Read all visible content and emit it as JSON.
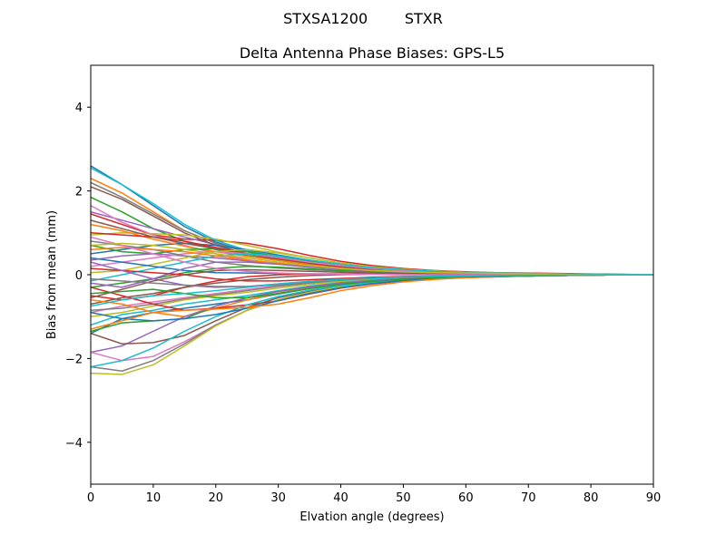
{
  "figure": {
    "suptitle": "STXSA1200        STXR"
  },
  "chart_data": {
    "type": "line",
    "title": "Delta Antenna Phase Biases: GPS-L5",
    "xlabel": "Elvation angle (degrees)",
    "ylabel": "Bias from mean (mm)",
    "xlim": [
      0,
      90
    ],
    "ylim": [
      -5,
      5
    ],
    "xticks": [
      0,
      10,
      20,
      30,
      40,
      50,
      60,
      70,
      80,
      90
    ],
    "xtick_labels": [
      "0",
      "10",
      "20",
      "30",
      "40",
      "50",
      "60",
      "70",
      "80",
      "90"
    ],
    "yticks": [
      -4,
      -2,
      0,
      2,
      4
    ],
    "ytick_labels": [
      "−4",
      "−2",
      "0",
      "2",
      "4"
    ],
    "grid": false,
    "legend": "none",
    "colors": [
      "#1f77b4",
      "#ff7f0e",
      "#2ca02c",
      "#d62728",
      "#9467bd",
      "#8c564b",
      "#e377c2",
      "#7f7f7f",
      "#bcbd22",
      "#17becf"
    ],
    "x": [
      0,
      5,
      10,
      15,
      20,
      25,
      30,
      35,
      40,
      45,
      50,
      55,
      60,
      65,
      70,
      75,
      80,
      85,
      90
    ],
    "series": [
      {
        "values": [
          2.6,
          2.15,
          1.65,
          1.15,
          0.78,
          0.55,
          0.38,
          0.26,
          0.18,
          0.12,
          0.08,
          0.05,
          0.04,
          0.03,
          0.02,
          0.02,
          0.01,
          0.0,
          0.0
        ]
      },
      {
        "values": [
          2.3,
          1.95,
          1.5,
          1.05,
          0.75,
          0.55,
          0.4,
          0.28,
          0.2,
          0.14,
          0.1,
          0.07,
          0.05,
          0.04,
          0.03,
          0.02,
          0.01,
          0.0,
          0.0
        ]
      },
      {
        "values": [
          1.85,
          1.5,
          1.1,
          0.8,
          0.6,
          0.46,
          0.34,
          0.24,
          0.17,
          0.12,
          0.08,
          0.06,
          0.04,
          0.03,
          0.02,
          0.01,
          0.01,
          0.0,
          0.0
        ]
      },
      {
        "values": [
          1.45,
          1.2,
          0.95,
          0.85,
          0.82,
          0.75,
          0.62,
          0.46,
          0.32,
          0.22,
          0.15,
          0.1,
          0.07,
          0.05,
          0.04,
          0.03,
          0.02,
          0.01,
          0.0
        ]
      },
      {
        "values": [
          1.5,
          1.3,
          1.1,
          0.9,
          0.72,
          0.56,
          0.42,
          0.3,
          0.21,
          0.15,
          0.1,
          0.07,
          0.05,
          0.04,
          0.03,
          0.02,
          0.01,
          0.0,
          0.0
        ]
      },
      {
        "values": [
          2.1,
          1.8,
          1.4,
          1.0,
          0.7,
          0.5,
          0.36,
          0.25,
          0.18,
          0.12,
          0.09,
          0.06,
          0.04,
          0.03,
          0.02,
          0.02,
          0.01,
          0.0,
          0.0
        ]
      },
      {
        "values": [
          1.65,
          1.25,
          0.95,
          0.7,
          0.5,
          0.36,
          0.26,
          0.18,
          0.13,
          0.09,
          0.06,
          0.05,
          0.04,
          0.03,
          0.02,
          0.01,
          0.01,
          0.0,
          0.0
        ]
      },
      {
        "values": [
          2.2,
          1.85,
          1.45,
          1.05,
          0.75,
          0.55,
          0.4,
          0.28,
          0.2,
          0.14,
          0.1,
          0.07,
          0.05,
          0.04,
          0.03,
          0.02,
          0.01,
          0.0,
          0.0
        ]
      },
      {
        "values": [
          0.95,
          1.0,
          0.98,
          0.95,
          0.85,
          0.7,
          0.54,
          0.4,
          0.28,
          0.19,
          0.13,
          0.09,
          0.06,
          0.05,
          0.03,
          0.02,
          0.01,
          0.0,
          0.0
        ]
      },
      {
        "values": [
          2.55,
          2.15,
          1.7,
          1.2,
          0.82,
          0.58,
          0.42,
          0.3,
          0.21,
          0.15,
          0.1,
          0.07,
          0.05,
          0.04,
          0.03,
          0.02,
          0.01,
          0.0,
          0.0
        ]
      },
      {
        "values": [
          0.5,
          0.6,
          0.7,
          0.75,
          0.7,
          0.6,
          0.47,
          0.35,
          0.25,
          0.17,
          0.12,
          0.08,
          0.06,
          0.04,
          0.03,
          0.02,
          0.01,
          0.0,
          0.0
        ]
      },
      {
        "values": [
          1.2,
          1.05,
          0.85,
          0.68,
          0.55,
          0.44,
          0.34,
          0.25,
          0.18,
          0.13,
          0.09,
          0.06,
          0.05,
          0.03,
          0.02,
          0.02,
          0.01,
          0.0,
          0.0
        ]
      },
      {
        "values": [
          0.7,
          0.55,
          0.5,
          0.6,
          0.62,
          0.55,
          0.44,
          0.33,
          0.24,
          0.17,
          0.12,
          0.08,
          0.06,
          0.04,
          0.03,
          0.02,
          0.01,
          0.0,
          0.0
        ]
      },
      {
        "values": [
          1.0,
          0.95,
          0.9,
          0.8,
          0.65,
          0.5,
          0.38,
          0.27,
          0.19,
          0.13,
          0.09,
          0.06,
          0.05,
          0.03,
          0.02,
          0.02,
          0.01,
          0.0,
          0.0
        ]
      },
      {
        "values": [
          0.35,
          0.45,
          0.5,
          0.45,
          0.4,
          0.33,
          0.26,
          0.19,
          0.14,
          0.1,
          0.07,
          0.05,
          0.04,
          0.03,
          0.02,
          0.01,
          0.01,
          0.0,
          0.0
        ]
      },
      {
        "values": [
          1.3,
          1.1,
          0.9,
          0.75,
          0.62,
          0.5,
          0.39,
          0.28,
          0.2,
          0.14,
          0.1,
          0.07,
          0.05,
          0.04,
          0.03,
          0.02,
          0.01,
          0.0,
          0.0
        ]
      },
      {
        "values": [
          0.2,
          0.3,
          0.4,
          0.5,
          0.55,
          0.5,
          0.41,
          0.3,
          0.22,
          0.15,
          0.1,
          0.07,
          0.05,
          0.04,
          0.03,
          0.02,
          0.01,
          0.0,
          0.0
        ]
      },
      {
        "values": [
          0.8,
          0.7,
          0.6,
          0.45,
          0.3,
          0.22,
          0.16,
          0.12,
          0.09,
          0.07,
          0.05,
          0.04,
          0.03,
          0.02,
          0.02,
          0.01,
          0.01,
          0.0,
          0.0
        ]
      },
      {
        "values": [
          0.05,
          0.1,
          0.25,
          0.4,
          0.55,
          0.6,
          0.52,
          0.4,
          0.28,
          0.19,
          0.13,
          0.09,
          0.06,
          0.04,
          0.03,
          0.02,
          0.01,
          0.0,
          0.0
        ]
      },
      {
        "values": [
          -0.15,
          0.0,
          0.15,
          0.3,
          0.45,
          0.5,
          0.45,
          0.35,
          0.25,
          0.17,
          0.12,
          0.08,
          0.06,
          0.04,
          0.03,
          0.02,
          0.01,
          0.0,
          0.0
        ]
      },
      {
        "values": [
          0.4,
          0.3,
          0.2,
          0.1,
          0.05,
          0.04,
          0.03,
          0.02,
          0.02,
          0.02,
          0.01,
          0.01,
          0.01,
          0.01,
          0.01,
          0.0,
          0.0,
          0.0,
          0.0
        ]
      },
      {
        "values": [
          0.6,
          0.65,
          0.6,
          0.55,
          0.45,
          0.35,
          0.27,
          0.2,
          0.14,
          0.1,
          0.07,
          0.05,
          0.04,
          0.03,
          0.02,
          0.01,
          0.01,
          0.0,
          0.0
        ]
      },
      {
        "values": [
          -0.3,
          -0.2,
          -0.1,
          0.05,
          0.15,
          0.2,
          0.18,
          0.14,
          0.1,
          0.07,
          0.05,
          0.04,
          0.03,
          0.02,
          0.02,
          0.01,
          0.01,
          0.0,
          0.0
        ]
      },
      {
        "values": [
          -0.5,
          -0.6,
          -0.5,
          -0.3,
          -0.15,
          -0.05,
          0.0,
          0.02,
          0.02,
          0.02,
          0.02,
          0.01,
          0.01,
          0.01,
          0.01,
          0.0,
          0.0,
          0.0,
          0.0
        ]
      },
      {
        "values": [
          -0.2,
          -0.3,
          -0.1,
          0.15,
          0.3,
          0.3,
          0.25,
          0.18,
          0.13,
          0.09,
          0.06,
          0.04,
          0.03,
          0.02,
          0.02,
          0.01,
          0.01,
          0.0,
          0.0
        ]
      },
      {
        "values": [
          -0.7,
          -0.55,
          -0.45,
          -0.3,
          -0.2,
          -0.12,
          -0.06,
          -0.02,
          0.0,
          0.01,
          0.01,
          0.01,
          0.01,
          0.0,
          0.0,
          0.0,
          0.0,
          0.0,
          0.0
        ]
      },
      {
        "values": [
          -0.9,
          -0.75,
          -0.65,
          -0.55,
          -0.45,
          -0.35,
          -0.26,
          -0.18,
          -0.12,
          -0.08,
          -0.05,
          -0.03,
          -0.02,
          -0.02,
          -0.01,
          -0.01,
          0.0,
          0.0,
          0.0
        ]
      },
      {
        "values": [
          -0.85,
          -0.8,
          -0.7,
          -0.58,
          -0.48,
          -0.38,
          -0.28,
          -0.2,
          -0.14,
          -0.1,
          -0.07,
          -0.05,
          -0.03,
          -0.02,
          -0.02,
          -0.01,
          -0.01,
          0.0,
          0.0
        ]
      },
      {
        "values": [
          -1.0,
          -0.9,
          -0.75,
          -0.6,
          -0.5,
          -0.42,
          -0.32,
          -0.23,
          -0.16,
          -0.11,
          -0.08,
          -0.05,
          -0.04,
          -0.03,
          -0.02,
          -0.01,
          -0.01,
          0.0,
          0.0
        ]
      },
      {
        "values": [
          -1.2,
          -0.95,
          -0.85,
          -0.7,
          -0.6,
          -0.5,
          -0.38,
          -0.27,
          -0.19,
          -0.13,
          -0.09,
          -0.06,
          -0.05,
          -0.03,
          -0.02,
          -0.02,
          -0.01,
          0.0,
          0.0
        ]
      },
      {
        "values": [
          -1.4,
          -1.05,
          -0.9,
          -0.8,
          -0.7,
          -0.6,
          -0.46,
          -0.33,
          -0.23,
          -0.16,
          -0.11,
          -0.08,
          -0.05,
          -0.04,
          -0.03,
          -0.02,
          -0.01,
          0.0,
          0.0
        ]
      },
      {
        "values": [
          -0.6,
          -0.7,
          -0.9,
          -1.0,
          -0.8,
          -0.6,
          -0.44,
          -0.31,
          -0.22,
          -0.15,
          -0.1,
          -0.07,
          -0.05,
          -0.04,
          -0.03,
          -0.02,
          -0.01,
          0.0,
          0.0
        ]
      },
      {
        "values": [
          -1.35,
          -1.15,
          -1.1,
          -1.05,
          -0.75,
          -0.55,
          -0.4,
          -0.29,
          -0.2,
          -0.14,
          -0.1,
          -0.07,
          -0.05,
          -0.04,
          -0.03,
          -0.02,
          -0.01,
          0.0,
          0.0
        ]
      },
      {
        "values": [
          -0.3,
          -0.5,
          -0.7,
          -0.85,
          -0.8,
          -0.72,
          -0.62,
          -0.46,
          -0.32,
          -0.22,
          -0.15,
          -0.1,
          -0.07,
          -0.05,
          -0.03,
          -0.02,
          -0.01,
          0.0,
          0.0
        ]
      },
      {
        "values": [
          -1.85,
          -1.7,
          -1.35,
          -1.0,
          -0.75,
          -0.55,
          -0.4,
          -0.29,
          -0.2,
          -0.14,
          -0.1,
          -0.07,
          -0.05,
          -0.04,
          -0.03,
          -0.02,
          -0.01,
          0.0,
          0.0
        ]
      },
      {
        "values": [
          -1.4,
          -1.65,
          -1.62,
          -1.45,
          -1.1,
          -0.78,
          -0.55,
          -0.39,
          -0.27,
          -0.19,
          -0.13,
          -0.09,
          -0.06,
          -0.04,
          -0.03,
          -0.02,
          -0.01,
          0.0,
          0.0
        ]
      },
      {
        "values": [
          -1.85,
          -2.05,
          -1.95,
          -1.6,
          -1.2,
          -0.85,
          -0.6,
          -0.42,
          -0.29,
          -0.2,
          -0.14,
          -0.09,
          -0.06,
          -0.04,
          -0.03,
          -0.02,
          -0.01,
          0.0,
          0.0
        ]
      },
      {
        "values": [
          -2.2,
          -2.3,
          -2.05,
          -1.65,
          -1.2,
          -0.85,
          -0.6,
          -0.42,
          -0.29,
          -0.2,
          -0.14,
          -0.09,
          -0.06,
          -0.04,
          -0.03,
          -0.02,
          -0.01,
          0.0,
          0.0
        ]
      },
      {
        "values": [
          -2.35,
          -2.38,
          -2.15,
          -1.7,
          -1.22,
          -0.85,
          -0.6,
          -0.42,
          -0.29,
          -0.2,
          -0.14,
          -0.09,
          -0.06,
          -0.04,
          -0.03,
          -0.02,
          -0.01,
          0.0,
          0.0
        ]
      },
      {
        "values": [
          -2.2,
          -2.05,
          -1.75,
          -1.35,
          -1.0,
          -0.72,
          -0.52,
          -0.37,
          -0.26,
          -0.18,
          -0.12,
          -0.08,
          -0.06,
          -0.04,
          -0.03,
          -0.02,
          -0.01,
          0.0,
          0.0
        ]
      },
      {
        "values": [
          -0.9,
          -1.05,
          -1.1,
          -1.05,
          -0.95,
          -0.8,
          -0.62,
          -0.45,
          -0.31,
          -0.21,
          -0.14,
          -0.09,
          -0.06,
          -0.04,
          -0.03,
          -0.02,
          -0.01,
          0.0,
          0.0
        ]
      },
      {
        "values": [
          -1.3,
          -1.1,
          -0.9,
          -0.85,
          -0.82,
          -0.78,
          -0.7,
          -0.55,
          -0.38,
          -0.26,
          -0.17,
          -0.11,
          -0.07,
          -0.05,
          -0.03,
          -0.02,
          -0.01,
          0.0,
          0.0
        ]
      },
      {
        "values": [
          -0.45,
          -0.4,
          -0.35,
          -0.45,
          -0.55,
          -0.55,
          -0.45,
          -0.33,
          -0.23,
          -0.16,
          -0.11,
          -0.07,
          -0.05,
          -0.04,
          -0.03,
          -0.02,
          -0.01,
          0.0,
          0.0
        ]
      },
      {
        "values": [
          0.15,
          0.1,
          0.05,
          0.0,
          -0.1,
          -0.15,
          -0.15,
          -0.12,
          -0.09,
          -0.06,
          -0.04,
          -0.03,
          -0.02,
          -0.02,
          -0.01,
          -0.01,
          0.0,
          0.0,
          0.0
        ]
      },
      {
        "values": [
          0.3,
          0.1,
          -0.1,
          -0.25,
          -0.3,
          -0.28,
          -0.22,
          -0.16,
          -0.11,
          -0.08,
          -0.05,
          -0.04,
          -0.03,
          -0.02,
          -0.01,
          -0.01,
          0.0,
          0.0,
          0.0
        ]
      },
      {
        "values": [
          -0.55,
          -0.35,
          -0.15,
          0.0,
          0.1,
          0.12,
          0.1,
          0.08,
          0.06,
          0.04,
          0.03,
          0.02,
          0.02,
          0.01,
          0.01,
          0.01,
          0.0,
          0.0,
          0.0
        ]
      },
      {
        "values": [
          0.9,
          0.7,
          0.5,
          0.3,
          0.15,
          0.08,
          0.04,
          0.02,
          0.01,
          0.01,
          0.0,
          0.0,
          0.0,
          0.0,
          0.0,
          0.0,
          0.0,
          0.0,
          0.0
        ]
      },
      {
        "values": [
          -0.1,
          -0.15,
          -0.2,
          -0.25,
          -0.28,
          -0.28,
          -0.24,
          -0.18,
          -0.13,
          -0.09,
          -0.06,
          -0.04,
          -0.03,
          -0.02,
          -0.02,
          -0.01,
          -0.01,
          0.0,
          0.0
        ]
      },
      {
        "values": [
          0.7,
          0.75,
          0.7,
          0.6,
          0.5,
          0.4,
          0.3,
          0.22,
          0.15,
          0.1,
          0.07,
          0.05,
          0.04,
          0.03,
          0.02,
          0.01,
          0.01,
          0.0,
          0.0
        ]
      },
      {
        "values": [
          -0.75,
          -0.6,
          -0.5,
          -0.45,
          -0.38,
          -0.3,
          -0.22,
          -0.16,
          -0.11,
          -0.08,
          -0.05,
          -0.04,
          -0.03,
          -0.02,
          -0.01,
          -0.01,
          0.0,
          0.0,
          0.0
        ]
      }
    ]
  }
}
